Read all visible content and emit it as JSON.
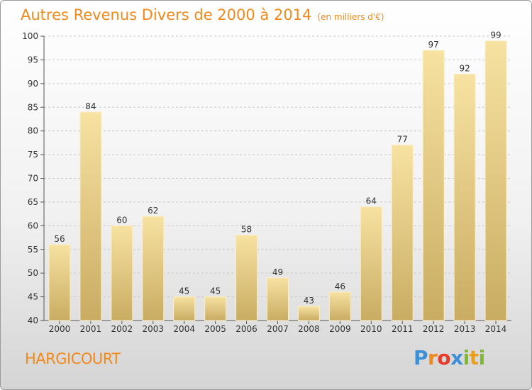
{
  "header": {
    "title": "Autres Revenus Divers de 2000 à 2014",
    "unit": "(en milliers d'€)"
  },
  "footer": {
    "commune": "HARGICOURT",
    "logo": "Proxiti"
  },
  "colors": {
    "title": "#f08a1c",
    "bar_light": "#f7e2a2",
    "bar_dark": "#c9ac62",
    "grid": "#c8c8c8",
    "axis_text": "#333333"
  },
  "chart_data": {
    "type": "bar",
    "title": "Autres Revenus Divers de 2000 à 2014",
    "subtitle": "(en milliers d'€)",
    "xlabel": "",
    "ylabel": "",
    "categories": [
      "2000",
      "2001",
      "2002",
      "2003",
      "2004",
      "2005",
      "2006",
      "2007",
      "2008",
      "2009",
      "2010",
      "2011",
      "2012",
      "2013",
      "2014"
    ],
    "values": [
      56,
      84,
      60,
      62,
      45,
      45,
      58,
      49,
      43,
      46,
      64,
      77,
      97,
      92,
      99
    ],
    "ylim": [
      40,
      100
    ],
    "yticks": [
      40,
      45,
      50,
      55,
      60,
      65,
      70,
      75,
      80,
      85,
      90,
      95,
      100
    ],
    "grid": "horizontal dashed",
    "legend": "none"
  }
}
